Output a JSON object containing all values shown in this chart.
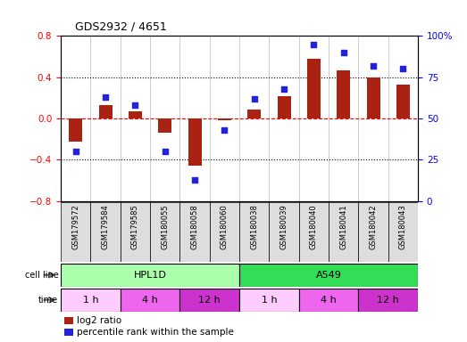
{
  "title": "GDS2932 / 4651",
  "samples": [
    "GSM179572",
    "GSM179584",
    "GSM179585",
    "GSM180055",
    "GSM180058",
    "GSM180060",
    "GSM180038",
    "GSM180039",
    "GSM180040",
    "GSM180041",
    "GSM180042",
    "GSM180043"
  ],
  "log2_ratio": [
    -0.22,
    0.13,
    0.07,
    -0.14,
    -0.46,
    -0.02,
    0.09,
    0.22,
    0.58,
    0.47,
    0.4,
    0.33
  ],
  "percentile_rank": [
    30,
    63,
    58,
    30,
    13,
    43,
    62,
    68,
    95,
    90,
    82,
    80
  ],
  "cell_line_groups": [
    {
      "label": "HPL1D",
      "start": 0,
      "end": 5,
      "color": "#AAFFAA"
    },
    {
      "label": "A549",
      "start": 6,
      "end": 11,
      "color": "#33DD55"
    }
  ],
  "time_groups": [
    {
      "label": "1 h",
      "start": 0,
      "end": 1,
      "color": "#FFCCFF"
    },
    {
      "label": "4 h",
      "start": 2,
      "end": 3,
      "color": "#EE66EE"
    },
    {
      "label": "12 h",
      "start": 4,
      "end": 5,
      "color": "#CC33CC"
    },
    {
      "label": "1 h",
      "start": 6,
      "end": 7,
      "color": "#FFCCFF"
    },
    {
      "label": "4 h",
      "start": 8,
      "end": 9,
      "color": "#EE66EE"
    },
    {
      "label": "12 h",
      "start": 10,
      "end": 11,
      "color": "#CC33CC"
    }
  ],
  "bar_color": "#AA2211",
  "dot_color": "#2222DD",
  "left_ylim": [
    -0.8,
    0.8
  ],
  "right_ylim": [
    0,
    100
  ],
  "left_yticks": [
    -0.8,
    -0.4,
    0.0,
    0.4,
    0.8
  ],
  "right_yticks": [
    0,
    25,
    50,
    75,
    100
  ],
  "right_yticklabels": [
    "0",
    "25",
    "50",
    "75",
    "100%"
  ],
  "dotted_lines": [
    -0.4,
    0.4
  ],
  "legend_items": [
    {
      "label": "log2 ratio",
      "color": "#AA2211"
    },
    {
      "label": "percentile rank within the sample",
      "color": "#2222DD"
    }
  ],
  "cell_line_label": "cell line",
  "time_label": "time",
  "sample_box_color": "#DDDDDD",
  "bar_width": 0.45
}
